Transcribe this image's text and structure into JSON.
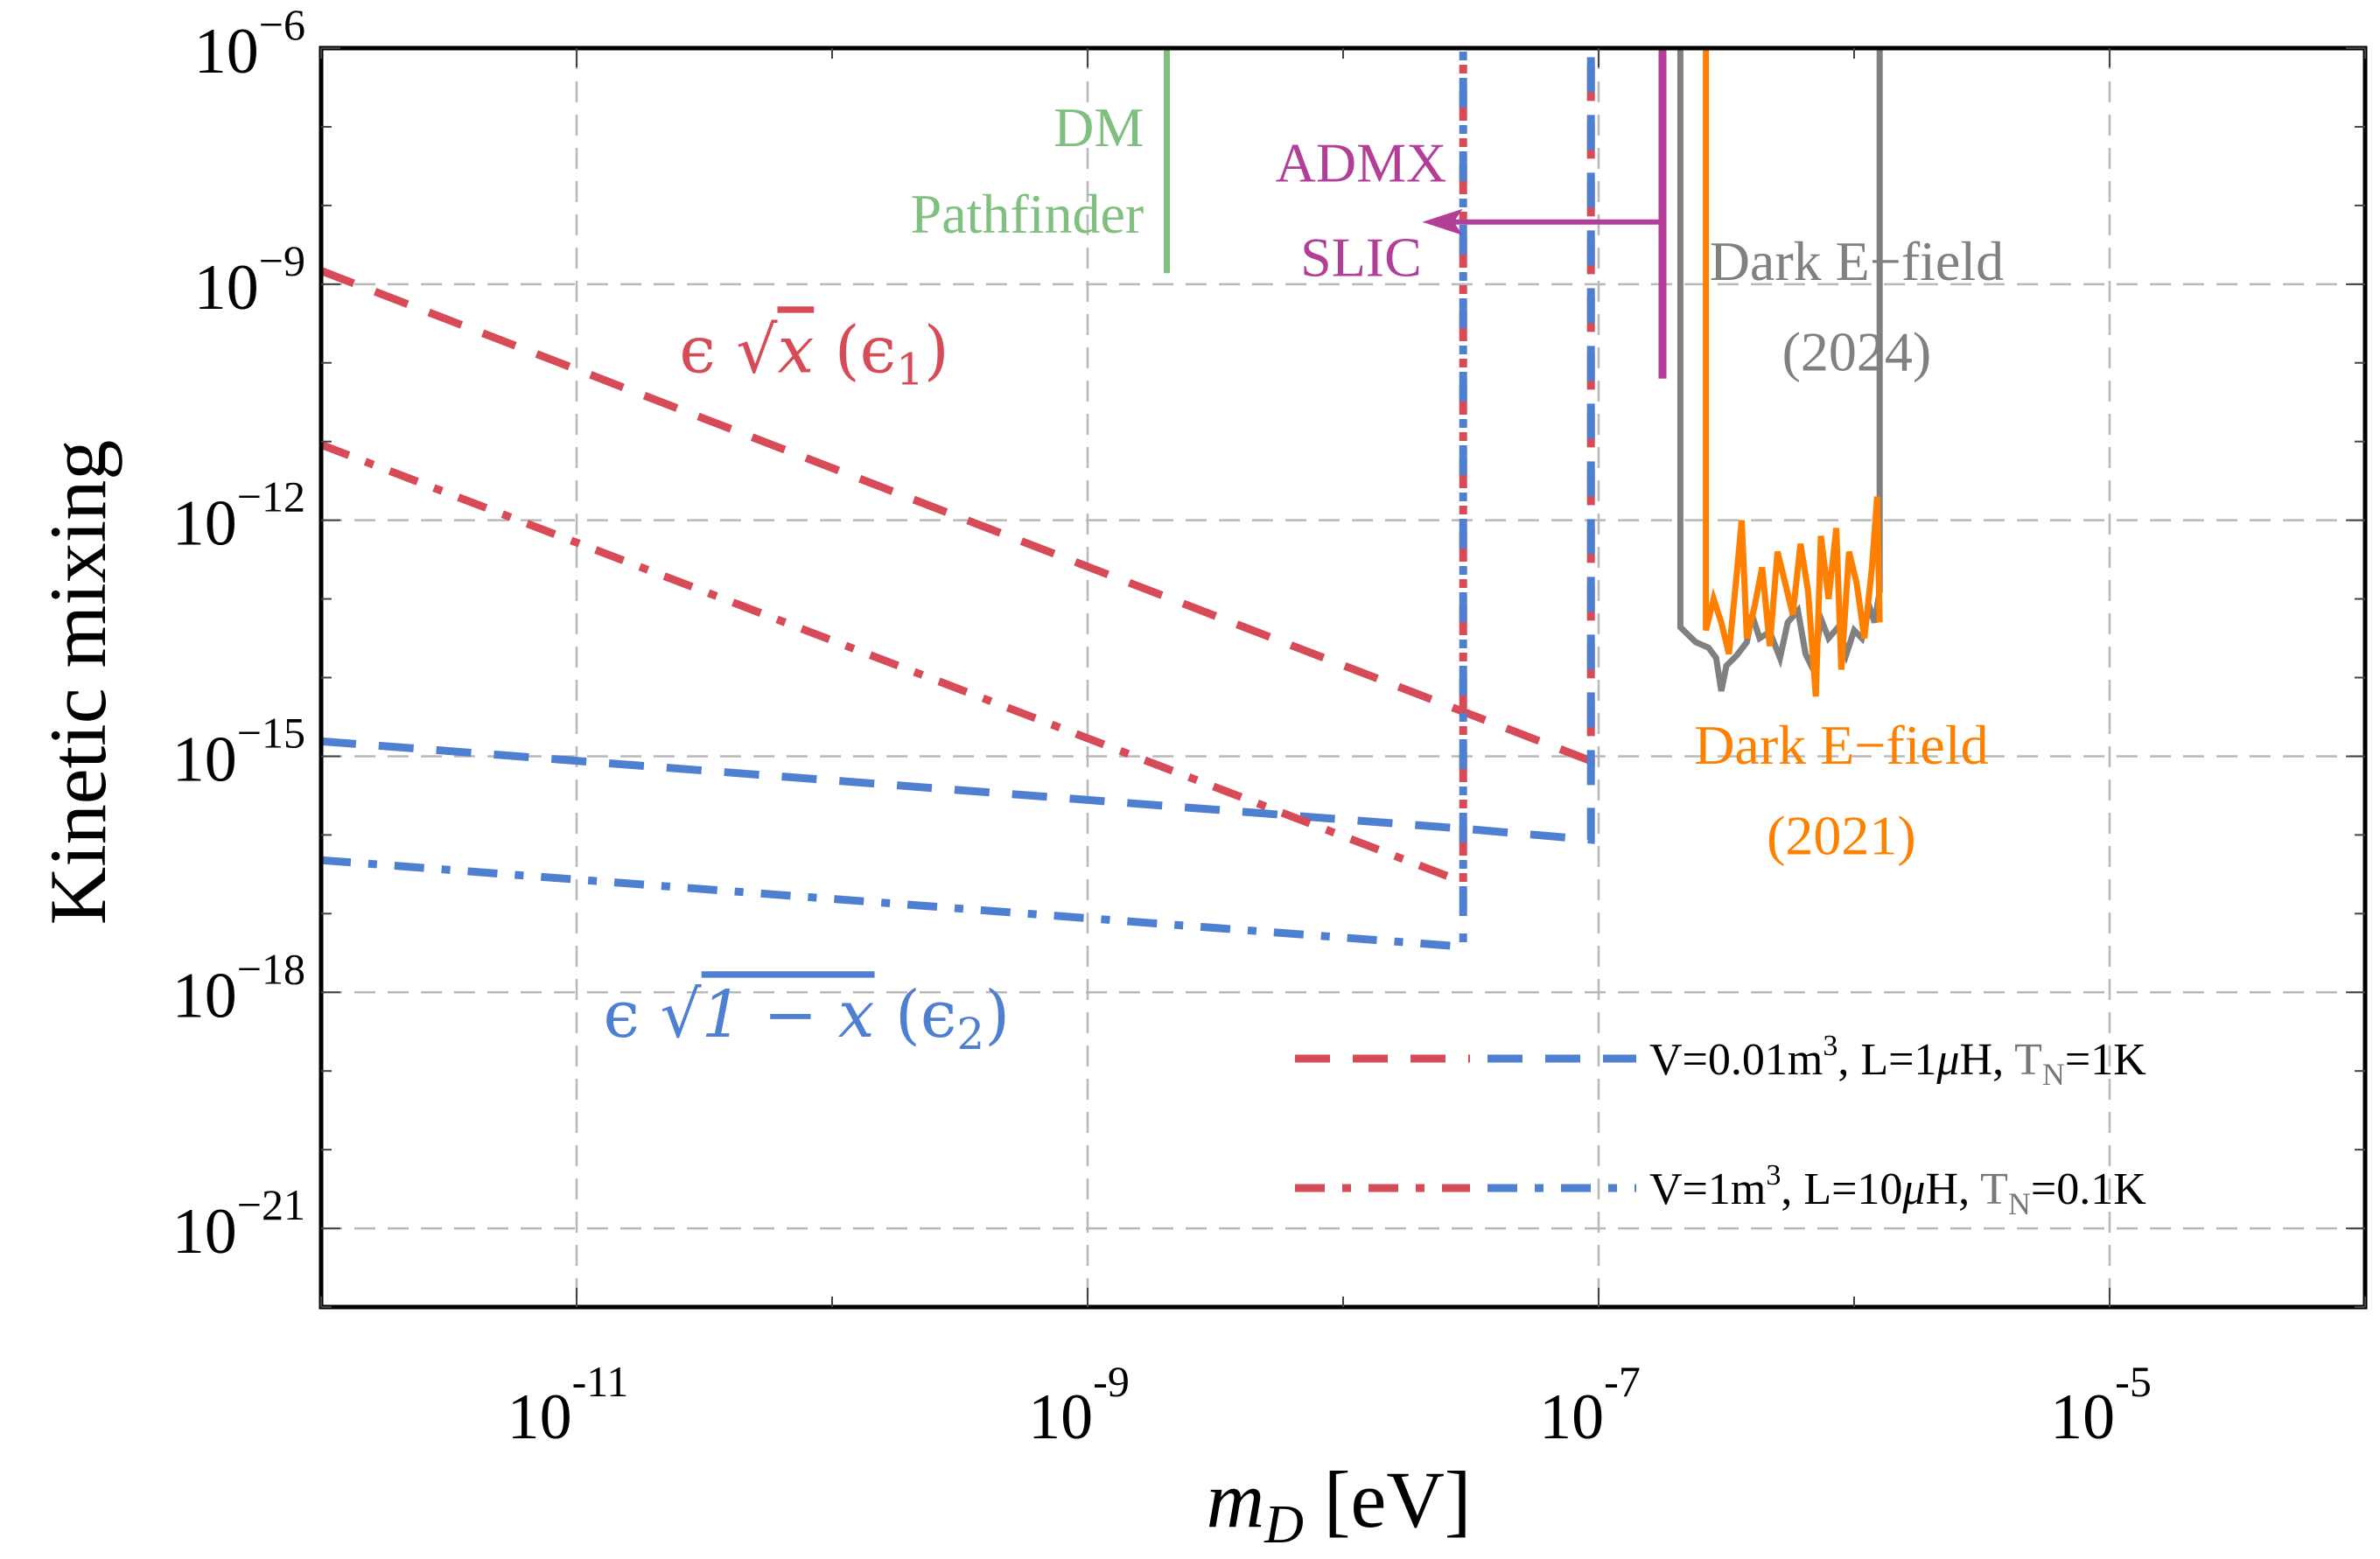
{
  "chart_data": {
    "type": "line",
    "title": "",
    "xlabel": "m_D [eV]",
    "xlabel_parts": {
      "var": "m",
      "sub": "D",
      "unit": " [eV]"
    },
    "ylabel": "Kinetic mixing",
    "xscale": "log",
    "yscale": "log",
    "xlim_log10": [
      -12,
      -4
    ],
    "ylim_log10": [
      -22,
      -6
    ],
    "grid": true,
    "x_ticks": [
      {
        "exp": -11,
        "base": "10",
        "sup": "-11"
      },
      {
        "exp": -9,
        "base": "10",
        "sup": "-9"
      },
      {
        "exp": -7,
        "base": "10",
        "sup": "-7"
      },
      {
        "exp": -5,
        "base": "10",
        "sup": "-5"
      }
    ],
    "y_ticks": [
      {
        "exp": -6,
        "base": "10",
        "sup": "−6"
      },
      {
        "exp": -9,
        "base": "10",
        "sup": "−9"
      },
      {
        "exp": -12,
        "base": "10",
        "sup": "−12"
      },
      {
        "exp": -15,
        "base": "10",
        "sup": "−15"
      },
      {
        "exp": -18,
        "base": "10",
        "sup": "−18"
      },
      {
        "exp": -21,
        "base": "10",
        "sup": "−21"
      }
    ],
    "colors": {
      "red": "#d64b57",
      "blue": "#4f7fd1",
      "green": "#7fbf7f",
      "magenta": "#b33e98",
      "gray": "#808080",
      "orange": "#ff8000",
      "axis": "#000000",
      "grid": "#b8b8b8"
    },
    "series": [
      {
        "name": "eps1 V=0.01m3 L=1uH TN=1K",
        "color_key": "red",
        "style": "dashed",
        "points_log10": [
          [
            -12,
            -8.83
          ],
          [
            -7.03,
            -15.06
          ],
          [
            -7.03,
            -6
          ]
        ]
      },
      {
        "name": "eps2 V=0.01m3 L=1uH TN=1K",
        "color_key": "blue",
        "style": "dashed",
        "points_log10": [
          [
            -12,
            -14.81
          ],
          [
            -7.53,
            -15.92
          ],
          [
            -7.03,
            -16.06
          ],
          [
            -7.03,
            -6
          ]
        ]
      },
      {
        "name": "eps1 V=1m3 L=10uH TN=0.1K",
        "color_key": "red",
        "style": "dashdot",
        "points_log10": [
          [
            -12,
            -11.04
          ],
          [
            -7.53,
            -16.6
          ],
          [
            -7.53,
            -6
          ]
        ]
      },
      {
        "name": "eps2 V=1m3 L=10uH TN=0.1K",
        "color_key": "blue",
        "style": "dashdot",
        "points_log10": [
          [
            -12,
            -16.32
          ],
          [
            -7.53,
            -17.42
          ],
          [
            -7.53,
            -6
          ]
        ]
      },
      {
        "name": "DM Pathfinder",
        "color_key": "green",
        "style": "solid",
        "points_log10": [
          [
            -8.69,
            -6
          ],
          [
            -8.69,
            -8.86
          ]
        ]
      },
      {
        "name": "ADMX SLIC",
        "color_key": "magenta",
        "style": "solid",
        "points_log10": [
          [
            -6.75,
            -6
          ],
          [
            -6.75,
            -10.2
          ]
        ],
        "arrow_log10": {
          "from": [
            -6.75,
            -8.21
          ],
          "to": [
            -7.69,
            -8.21
          ]
        }
      },
      {
        "name": "Dark E-field (2024)",
        "color_key": "gray",
        "style": "solid",
        "points_log10": [
          [
            -6.68,
            -6
          ],
          [
            -6.68,
            -13.36
          ],
          [
            -6.62,
            -13.55
          ],
          [
            -6.57,
            -13.62
          ],
          [
            -6.54,
            -13.75
          ],
          [
            -6.52,
            -14.17
          ],
          [
            -6.5,
            -13.85
          ],
          [
            -6.46,
            -13.72
          ],
          [
            -6.42,
            -13.55
          ],
          [
            -6.4,
            -13.2
          ],
          [
            -6.37,
            -13.5
          ],
          [
            -6.33,
            -13.42
          ],
          [
            -6.29,
            -13.75
          ],
          [
            -6.26,
            -13.3
          ],
          [
            -6.22,
            -13.15
          ],
          [
            -6.19,
            -13.7
          ],
          [
            -6.16,
            -13.9
          ],
          [
            -6.13,
            -13.25
          ],
          [
            -6.1,
            -13.5
          ],
          [
            -6.06,
            -13.35
          ],
          [
            -6.03,
            -13.7
          ],
          [
            -6.0,
            -13.4
          ],
          [
            -5.97,
            -13.5
          ],
          [
            -5.94,
            -13.1
          ],
          [
            -5.92,
            -13.3
          ],
          [
            -5.9,
            -12.9
          ],
          [
            -5.9,
            -6
          ]
        ]
      },
      {
        "name": "Dark E-field (2021)",
        "color_key": "orange",
        "style": "solid",
        "points_log10": [
          [
            -6.58,
            -6
          ],
          [
            -6.58,
            -13.4
          ],
          [
            -6.55,
            -13.0
          ],
          [
            -6.52,
            -13.3
          ],
          [
            -6.49,
            -13.7
          ],
          [
            -6.46,
            -12.7
          ],
          [
            -6.44,
            -12.0
          ],
          [
            -6.42,
            -13.5
          ],
          [
            -6.39,
            -13.1
          ],
          [
            -6.36,
            -12.6
          ],
          [
            -6.33,
            -13.6
          ],
          [
            -6.3,
            -12.4
          ],
          [
            -6.27,
            -12.8
          ],
          [
            -6.24,
            -13.2
          ],
          [
            -6.21,
            -12.3
          ],
          [
            -6.18,
            -12.9
          ],
          [
            -6.15,
            -14.24
          ],
          [
            -6.13,
            -12.2
          ],
          [
            -6.1,
            -13.0
          ],
          [
            -6.07,
            -12.1
          ],
          [
            -6.05,
            -13.9
          ],
          [
            -6.02,
            -12.4
          ],
          [
            -5.99,
            -12.8
          ],
          [
            -5.96,
            -13.5
          ],
          [
            -5.93,
            -12.6
          ],
          [
            -5.91,
            -11.7
          ],
          [
            -5.9,
            -13.3
          ]
        ]
      }
    ],
    "annotations": [
      {
        "id": "dm-pathfinder-label",
        "lines": [
          "DM",
          "Pathfinder"
        ],
        "color_key": "green",
        "anchor": "end",
        "x_log10": -8.78,
        "y_log10": [
          -7.0,
          -8.1
        ]
      },
      {
        "id": "admx-slic-label",
        "lines": [
          "ADMX",
          "SLIC"
        ],
        "color_key": "magenta",
        "anchor": "middle",
        "x_log10": -7.93,
        "y_log10": [
          -7.45,
          -8.65
        ]
      },
      {
        "id": "dark-efield-2024-label",
        "lines": [
          "Dark E−field",
          "(2024)"
        ],
        "color_key": "gray",
        "anchor": "middle",
        "x_log10": -5.99,
        "y_log10": [
          -8.7,
          -9.85
        ]
      },
      {
        "id": "dark-efield-2021-label",
        "lines": [
          "Dark E−field",
          "(2021)"
        ],
        "color_key": "orange",
        "anchor": "middle",
        "x_log10": -6.05,
        "y_log10": [
          -14.85,
          -16.0
        ]
      },
      {
        "id": "eps1-label",
        "text": "ϵ √x (ϵ₁)",
        "parts": {
          "eps": "ϵ",
          "rad": "x",
          "paren": "(ϵ",
          "sub": "1",
          "close": ")"
        },
        "color_key": "red",
        "x_log10": -10.07,
        "y_log10": -9.85
      },
      {
        "id": "eps2-label",
        "text": "ϵ √1−x (ϵ₂)",
        "parts": {
          "eps": "ϵ",
          "rad": "1 − x",
          "paren": "(ϵ",
          "sub": "2",
          "close": ")"
        },
        "color_key": "blue",
        "x_log10": -10.1,
        "y_log10": -18.3
      }
    ],
    "legend": {
      "placement": "bottom-right",
      "entries": [
        {
          "style": "dashed",
          "text_parts": [
            "V=0.01m",
            "3",
            ", L=1",
            "μ",
            "H, ",
            "T",
            "N",
            "=1K"
          ],
          "label": "V=0.01m³, L=1μH, T_N=1K"
        },
        {
          "style": "dashdot",
          "text_parts": [
            "V=1m",
            "3",
            ", L=10",
            "μ",
            "H, ",
            "T",
            "N",
            "=0.1K"
          ],
          "label": "V=1m³, L=10μH, T_N=0.1K"
        }
      ]
    }
  }
}
